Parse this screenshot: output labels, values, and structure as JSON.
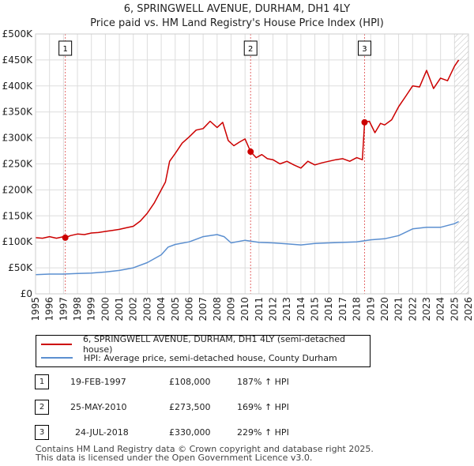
{
  "header": {
    "title": "6, SPRINGWELL AVENUE, DURHAM, DH1 4LY",
    "subtitle": "Price paid vs. HM Land Registry's House Price Index (HPI)"
  },
  "legend": {
    "property_label": "6, SPRINGWELL AVENUE, DURHAM, DH1 4LY (semi-detached house)",
    "hpi_label": "HPI: Average price, semi-detached house, County Durham"
  },
  "sales": [
    {
      "num": "1",
      "date": "19-FEB-1997",
      "price": "£108,000",
      "change": "187% ↑ HPI"
    },
    {
      "num": "2",
      "date": "25-MAY-2010",
      "price": "£273,500",
      "change": "169% ↑ HPI"
    },
    {
      "num": "3",
      "date": "24-JUL-2018",
      "price": "£330,000",
      "change": "229% ↑ HPI"
    }
  ],
  "footer": {
    "line1": "Contains HM Land Registry data © Crown copyright and database right 2025.",
    "line2": "This data is licensed under the Open Government Licence v3.0."
  },
  "colors": {
    "property": "#cc0000",
    "hpi": "#5b8fd0",
    "grid": "#dddddd",
    "hatch": "#bbbbbb"
  },
  "chart_data": {
    "type": "line",
    "x_ticks": [
      "1995",
      "1996",
      "1997",
      "1998",
      "1999",
      "2000",
      "2001",
      "2002",
      "2003",
      "2004",
      "2005",
      "2006",
      "2007",
      "2008",
      "2009",
      "2010",
      "2011",
      "2012",
      "2013",
      "2014",
      "2015",
      "2016",
      "2017",
      "2018",
      "2019",
      "2020",
      "2021",
      "2022",
      "2023",
      "2024",
      "2025",
      "2026"
    ],
    "y_ticks": [
      "£0",
      "£50K",
      "£100K",
      "£150K",
      "£200K",
      "£250K",
      "£300K",
      "£350K",
      "£400K",
      "£450K",
      "£500K"
    ],
    "xlim": [
      1995,
      2026
    ],
    "ylim": [
      0,
      500000
    ],
    "forecast_start": 2025.0,
    "sale_markers": [
      {
        "label": "1",
        "x": 1997.13,
        "y": 108000
      },
      {
        "label": "2",
        "x": 2010.4,
        "y": 273500
      },
      {
        "label": "3",
        "x": 2018.56,
        "y": 330000
      }
    ],
    "series": [
      {
        "name": "property",
        "points": [
          [
            1995.0,
            108000
          ],
          [
            1995.5,
            107000
          ],
          [
            1996.0,
            110000
          ],
          [
            1996.5,
            107000
          ],
          [
            1997.0,
            110000
          ],
          [
            1997.13,
            108000
          ],
          [
            1997.5,
            112000
          ],
          [
            1998.0,
            115000
          ],
          [
            1998.5,
            114000
          ],
          [
            1999.0,
            117000
          ],
          [
            1999.5,
            118000
          ],
          [
            2000.0,
            120000
          ],
          [
            2000.5,
            122000
          ],
          [
            2001.0,
            124000
          ],
          [
            2001.5,
            127000
          ],
          [
            2002.0,
            130000
          ],
          [
            2002.5,
            140000
          ],
          [
            2003.0,
            155000
          ],
          [
            2003.5,
            175000
          ],
          [
            2004.0,
            200000
          ],
          [
            2004.3,
            215000
          ],
          [
            2004.6,
            255000
          ],
          [
            2005.0,
            270000
          ],
          [
            2005.5,
            290000
          ],
          [
            2006.0,
            302000
          ],
          [
            2006.5,
            315000
          ],
          [
            2007.0,
            318000
          ],
          [
            2007.5,
            332000
          ],
          [
            2008.0,
            320000
          ],
          [
            2008.4,
            330000
          ],
          [
            2008.8,
            295000
          ],
          [
            2009.2,
            285000
          ],
          [
            2009.6,
            292000
          ],
          [
            2010.0,
            298000
          ],
          [
            2010.4,
            273500
          ],
          [
            2010.8,
            262000
          ],
          [
            2011.2,
            268000
          ],
          [
            2011.6,
            260000
          ],
          [
            2012.0,
            258000
          ],
          [
            2012.5,
            250000
          ],
          [
            2013.0,
            255000
          ],
          [
            2013.5,
            248000
          ],
          [
            2014.0,
            242000
          ],
          [
            2014.5,
            255000
          ],
          [
            2015.0,
            248000
          ],
          [
            2015.5,
            252000
          ],
          [
            2016.0,
            255000
          ],
          [
            2016.5,
            258000
          ],
          [
            2017.0,
            260000
          ],
          [
            2017.5,
            255000
          ],
          [
            2018.0,
            262000
          ],
          [
            2018.4,
            258000
          ],
          [
            2018.56,
            330000
          ],
          [
            2018.9,
            332000
          ],
          [
            2019.3,
            310000
          ],
          [
            2019.7,
            328000
          ],
          [
            2020.0,
            325000
          ],
          [
            2020.5,
            335000
          ],
          [
            2021.0,
            360000
          ],
          [
            2021.5,
            380000
          ],
          [
            2022.0,
            400000
          ],
          [
            2022.5,
            398000
          ],
          [
            2023.0,
            430000
          ],
          [
            2023.5,
            395000
          ],
          [
            2024.0,
            415000
          ],
          [
            2024.5,
            410000
          ],
          [
            2025.0,
            438000
          ],
          [
            2025.3,
            450000
          ]
        ]
      },
      {
        "name": "hpi",
        "points": [
          [
            1995.0,
            37000
          ],
          [
            1996.0,
            38000
          ],
          [
            1997.0,
            38000
          ],
          [
            1998.0,
            39000
          ],
          [
            1999.0,
            40000
          ],
          [
            2000.0,
            42000
          ],
          [
            2001.0,
            45000
          ],
          [
            2002.0,
            50000
          ],
          [
            2003.0,
            60000
          ],
          [
            2004.0,
            75000
          ],
          [
            2004.5,
            90000
          ],
          [
            2005.0,
            95000
          ],
          [
            2006.0,
            100000
          ],
          [
            2007.0,
            110000
          ],
          [
            2008.0,
            114000
          ],
          [
            2008.5,
            110000
          ],
          [
            2009.0,
            98000
          ],
          [
            2010.0,
            103000
          ],
          [
            2011.0,
            99000
          ],
          [
            2012.0,
            98000
          ],
          [
            2013.0,
            96000
          ],
          [
            2014.0,
            94000
          ],
          [
            2015.0,
            97000
          ],
          [
            2016.0,
            98000
          ],
          [
            2017.0,
            99000
          ],
          [
            2018.0,
            100000
          ],
          [
            2019.0,
            104000
          ],
          [
            2020.0,
            106000
          ],
          [
            2021.0,
            112000
          ],
          [
            2022.0,
            125000
          ],
          [
            2023.0,
            128000
          ],
          [
            2024.0,
            128000
          ],
          [
            2025.0,
            135000
          ],
          [
            2025.3,
            139000
          ]
        ]
      }
    ]
  }
}
